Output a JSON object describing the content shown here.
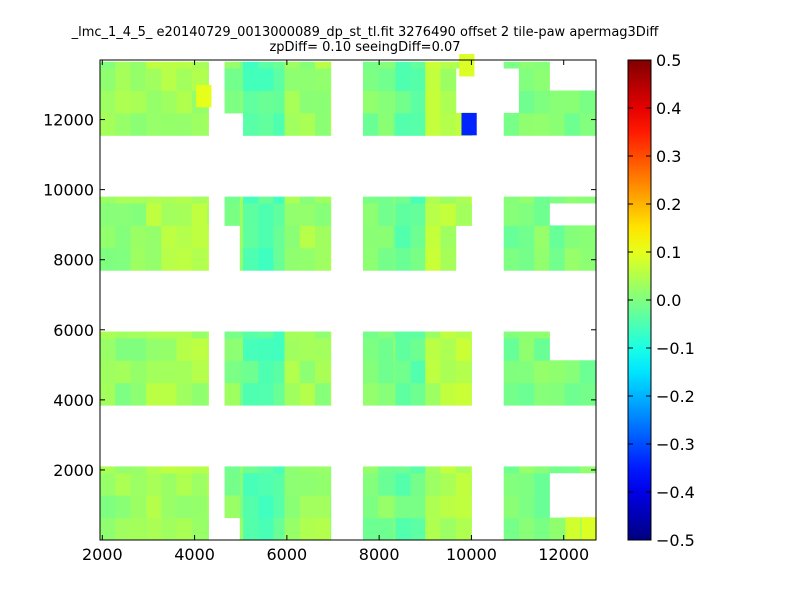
{
  "chart_data": {
    "type": "heatmap",
    "title": "_lmc_1_4_5_ e20140729_0013000089_dp_st_tl.fit 3276490 offset 2 tile-paw apermag3Diff",
    "subtitle": "zpDiff= 0.10 seeingDiff=0.07",
    "xlabel": "",
    "ylabel": "",
    "xlim": [
      1950,
      12700
    ],
    "ylim": [
      0,
      13700
    ],
    "xticks": [
      "2000",
      "4000",
      "6000",
      "8000",
      "10000",
      "12000"
    ],
    "yticks": [
      "2000",
      "4000",
      "6000",
      "8000",
      "10000",
      "12000"
    ],
    "colorbar": {
      "colormap": "jet",
      "range": [
        -0.5,
        0.5
      ],
      "ticks": [
        "0.5",
        "0.4",
        "0.3",
        "0.2",
        "0.1",
        "0.0",
        "−0.1",
        "−0.2",
        "−0.3",
        "−0.4",
        "−0.5"
      ]
    },
    "grid": false,
    "cell_size": [
      330,
      640
    ],
    "bands": [
      {
        "y0": 0,
        "y1": 2100
      },
      {
        "y0": 3850,
        "y1": 5950
      },
      {
        "y0": 7700,
        "y1": 9800
      },
      {
        "y0": 11550,
        "y1": 13650
      }
    ],
    "columns": [
      {
        "x0": 1950,
        "x1": 2950,
        "base": 0.02
      },
      {
        "x0": 2950,
        "x1": 4300,
        "base": 0.04
      },
      {
        "x0": 4650,
        "x1": 5050,
        "base": 0.01
      },
      {
        "x0": 5050,
        "x1": 5950,
        "base": -0.04
      },
      {
        "x0": 5950,
        "x1": 6950,
        "base": 0.03
      },
      {
        "x0": 7650,
        "x1": 8350,
        "base": 0.0
      },
      {
        "x0": 8350,
        "x1": 9000,
        "base": -0.03
      },
      {
        "x0": 9000,
        "x1": 10000,
        "base": 0.05
      },
      {
        "x0": 10700,
        "x1": 12700,
        "base": 0.0
      }
    ],
    "highlights": [
      {
        "x": 9950,
        "y": 11870,
        "value": -0.34
      },
      {
        "x": 4200,
        "y": 12670,
        "value": 0.1
      },
      {
        "x": 9900,
        "y": 13550,
        "value": 0.09
      },
      {
        "x": 12200,
        "y": 330,
        "value": 0.08
      },
      {
        "x": 12550,
        "y": 330,
        "value": 0.09
      }
    ],
    "holes": [
      {
        "x0": 4300,
        "x1": 4650,
        "y0": 0,
        "y1": 13650
      },
      {
        "x0": 6950,
        "x1": 7650,
        "y0": 0,
        "y1": 13650
      },
      {
        "x0": 10000,
        "x1": 10700,
        "y0": 0,
        "y1": 13650
      },
      {
        "x0": 4300,
        "x1": 4700,
        "y0": 4950,
        "y1": 5950
      },
      {
        "x0": 4300,
        "x1": 4700,
        "y0": 8750,
        "y1": 9800
      },
      {
        "x0": 4300,
        "x1": 4700,
        "y0": 12900,
        "y1": 13650
      },
      {
        "x0": 11850,
        "x1": 12700,
        "y0": 4950,
        "y1": 5950
      },
      {
        "x0": 11850,
        "x1": 12700,
        "y0": 8700,
        "y1": 9500
      },
      {
        "x0": 11850,
        "x1": 12700,
        "y0": 12650,
        "y1": 13650
      },
      {
        "x0": 11850,
        "x1": 12700,
        "y0": 600,
        "y1": 1700
      },
      {
        "x0": 9800,
        "x1": 10000,
        "y0": 12000,
        "y1": 13200
      },
      {
        "x0": 10700,
        "x1": 11100,
        "y0": 12000,
        "y1": 13300
      },
      {
        "x0": 4650,
        "x1": 5050,
        "y0": 11550,
        "y1": 12100
      },
      {
        "x0": 4650,
        "x1": 5000,
        "y0": 0,
        "y1": 350
      },
      {
        "x0": 9700,
        "x1": 10000,
        "y0": 7700,
        "y1": 9200
      },
      {
        "x0": 4650,
        "x1": 5000,
        "y0": 7700,
        "y1": 8700
      }
    ]
  }
}
